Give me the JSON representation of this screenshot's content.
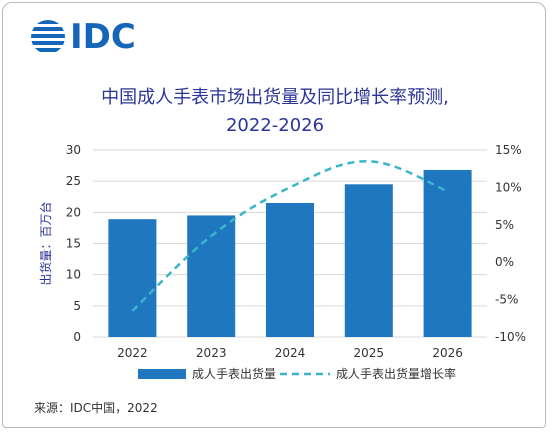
{
  "logo": {
    "text": "IDC",
    "color": "#1565b8"
  },
  "title_line1": "中国成人手表市场出货量及同比增长率预测,",
  "title_line2": "2022-2026",
  "source": "来源：IDC中国，2022",
  "chart_data": {
    "type": "bar",
    "categories": [
      "2022",
      "2023",
      "2024",
      "2025",
      "2026"
    ],
    "series": [
      {
        "name": "成人手表出货量",
        "type": "bar",
        "axis": "left",
        "color": "#1f77c0",
        "values": [
          18.9,
          19.5,
          21.5,
          24.5,
          26.8
        ]
      },
      {
        "name": "成人手表出货量增长率",
        "type": "line",
        "axis": "right",
        "color": "#3ab5c9",
        "dashed": true,
        "values": [
          -6.5,
          3.5,
          10.0,
          13.5,
          9.5
        ]
      }
    ],
    "ylabel": "出货量：百万台",
    "ylim": [
      0,
      30
    ],
    "yticks": [
      "0",
      "5",
      "10",
      "15",
      "20",
      "25",
      "30"
    ],
    "y2lim": [
      -10,
      15
    ],
    "y2ticks": [
      "-10%",
      "-5%",
      "0%",
      "5%",
      "10%",
      "15%"
    ],
    "legend": "bottom",
    "grid": true
  }
}
